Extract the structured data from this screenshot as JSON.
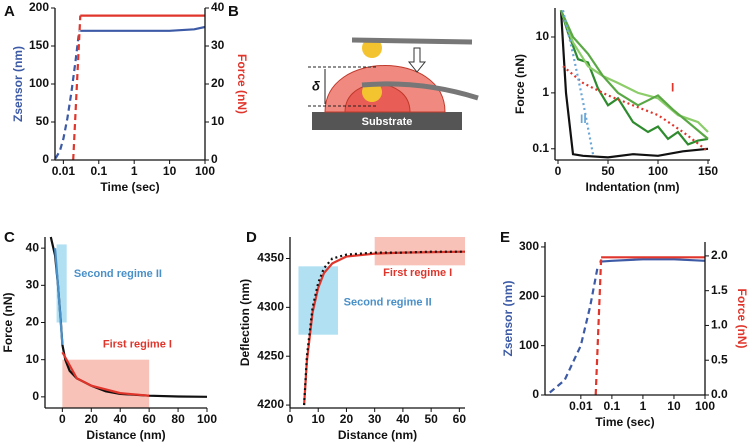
{
  "diagram": {
    "substrate_label": "Substrate",
    "delta_label": "δ"
  },
  "chart_data": [
    {
      "type": "line",
      "panel": "A",
      "xlabel": "Time (sec)",
      "ylabel": "Zsensor (nm)",
      "ylabel_color": "#3c5aa6",
      "y2label": "Force (nN)",
      "y2label_color": "#e0352b",
      "xlog": true,
      "xlim": [
        0.0058,
        100
      ],
      "xticks": [
        0.01,
        0.1,
        1,
        10,
        100
      ],
      "ylim": [
        0,
        200
      ],
      "yticks": [
        0,
        50,
        100,
        150,
        200
      ],
      "y2lim": [
        0,
        40
      ],
      "y2ticks": [
        0,
        10,
        20,
        30,
        40
      ],
      "series": [
        {
          "color": "#3c5aa6",
          "style": "dashed",
          "x": [
            0.006,
            0.008,
            0.01,
            0.013,
            0.017,
            0.022,
            0.028
          ],
          "values": [
            2,
            12,
            28,
            55,
            90,
            130,
            170
          ]
        },
        {
          "color": "#3c5aa6",
          "style": "solid",
          "x": [
            0.03,
            0.1,
            1,
            10,
            50,
            100
          ],
          "values": [
            170,
            170,
            170,
            170,
            172,
            175
          ]
        },
        {
          "color": "#e0352b",
          "style": "dashed",
          "axis": "y2",
          "x": [
            0.019,
            0.03
          ],
          "values": [
            0,
            38
          ]
        },
        {
          "color": "#e0352b",
          "style": "solid",
          "axis": "y2",
          "x": [
            0.03,
            100
          ],
          "values": [
            38,
            38
          ]
        }
      ]
    },
    {
      "type": "line",
      "panel": "B",
      "xlabel": "Indentation (nm)",
      "ylabel": "Force (nN)",
      "ylog": true,
      "xlim": [
        -3,
        152
      ],
      "xticks": [
        0,
        50,
        100,
        150
      ],
      "ylim": [
        0.063,
        33
      ],
      "yticks": [
        0.1,
        1,
        10
      ],
      "series": [
        {
          "color": "#111111",
          "style": "solid",
          "x": [
            3,
            8,
            15,
            25,
            50,
            75,
            100,
            125,
            150
          ],
          "values": [
            30,
            1,
            0.08,
            0.075,
            0.07,
            0.08,
            0.075,
            0.09,
            0.1
          ]
        },
        {
          "color": "#2e8b2e",
          "style": "solid",
          "x": [
            3,
            10,
            20,
            30,
            40,
            50,
            60,
            75,
            90,
            100,
            110,
            120,
            130,
            140,
            150
          ],
          "values": [
            30,
            12,
            4,
            3.5,
            1.2,
            0.6,
            0.8,
            0.3,
            0.2,
            0.25,
            0.15,
            0.2,
            0.12,
            0.14,
            0.15
          ]
        },
        {
          "color": "#8ccd6a",
          "style": "solid",
          "x": [
            3,
            15,
            30,
            45,
            60,
            80,
            100,
            120,
            140,
            150
          ],
          "values": [
            30,
            8,
            3,
            2,
            1.5,
            1,
            0.8,
            0.4,
            0.3,
            0.2
          ]
        },
        {
          "color": "#5aa845",
          "style": "solid",
          "x": [
            3,
            15,
            30,
            45,
            60,
            80,
            100,
            115,
            130,
            150
          ],
          "values": [
            30,
            10,
            5,
            2,
            1,
            0.6,
            0.9,
            0.5,
            0.3,
            0.15
          ]
        },
        {
          "color": "#e0352b",
          "style": "dotted",
          "x": [
            5,
            25,
            50,
            75,
            100,
            125,
            150
          ],
          "values": [
            3,
            1.5,
            0.9,
            0.6,
            0.4,
            0.2,
            0.09
          ]
        },
        {
          "color": "#6aa6d6",
          "style": "dotted",
          "x": [
            5,
            15,
            25,
            35
          ],
          "values": [
            30,
            5,
            0.7,
            0.08
          ]
        }
      ],
      "annotations": [
        {
          "text": "I",
          "x": 113,
          "y": 1.2,
          "color": "#e0352b"
        },
        {
          "text": "II",
          "x": 22,
          "y": 0.33,
          "color": "#6aa6d6"
        }
      ]
    },
    {
      "type": "line",
      "panel": "C",
      "xlabel": "Distance (nm)",
      "ylabel": "Force (nN)",
      "xlim": [
        -12,
        100
      ],
      "xticks": [
        0,
        20,
        40,
        60,
        80,
        100
      ],
      "ylim": [
        -3,
        43
      ],
      "yticks": [
        0,
        10,
        20,
        30,
        40
      ],
      "regions": [
        {
          "x": [
            -4,
            3
          ],
          "y": [
            20,
            41
          ],
          "color": "#9fd8f0",
          "label": "Second regime II",
          "label_x": 8,
          "label_y": 33,
          "label_color": "#4a90c8"
        },
        {
          "x": [
            0,
            60
          ],
          "y": [
            -3,
            10
          ],
          "color": "#f6b3a6",
          "label": "First regime I",
          "label_x": 28,
          "label_y": 14,
          "label_color": "#e0352b"
        }
      ],
      "series": [
        {
          "color": "#111111",
          "style": "solid",
          "x": [
            -8,
            -5,
            -3,
            -1,
            0,
            2,
            5,
            10,
            20,
            30,
            40,
            60,
            80,
            100
          ],
          "values": [
            43,
            38,
            30,
            20,
            14,
            10,
            7,
            5,
            3,
            1.5,
            0.8,
            0.3,
            0.1,
            0
          ]
        },
        {
          "color": "#e0352b",
          "style": "solid",
          "x": [
            0,
            10,
            20,
            40,
            60
          ],
          "values": [
            12,
            5,
            3,
            1,
            0.3
          ]
        },
        {
          "color": "#4a90c8",
          "style": "solid",
          "x": [
            -5,
            -3,
            0
          ],
          "values": [
            40,
            30,
            14
          ]
        }
      ]
    },
    {
      "type": "line",
      "panel": "D",
      "xlabel": "Distance (nm)",
      "ylabel": "Deflection (nm)",
      "xlim": [
        0,
        62
      ],
      "xticks": [
        0,
        10,
        20,
        30,
        40,
        50,
        60
      ],
      "ylim": [
        4197,
        4372
      ],
      "yticks": [
        4200,
        4250,
        4300,
        4350
      ],
      "regions": [
        {
          "x": [
            3,
            17
          ],
          "y": [
            4272,
            4342
          ],
          "color": "#9fd8f0",
          "label": "Second regime II",
          "label_x": 19,
          "label_y": 4305,
          "label_color": "#4a90c8"
        },
        {
          "x": [
            30,
            62
          ],
          "y": [
            4343,
            4372
          ],
          "color": "#f6b3a6",
          "label": "First regime I",
          "label_x": 33,
          "label_y": 4335,
          "label_color": "#e0352b"
        }
      ],
      "series": [
        {
          "color": "#e0352b",
          "style": "solid",
          "x": [
            5,
            6,
            8,
            10,
            12,
            15,
            20,
            30,
            40,
            62
          ],
          "values": [
            4200,
            4245,
            4295,
            4320,
            4335,
            4345,
            4352,
            4355,
            4356,
            4357
          ]
        },
        {
          "color": "#111111",
          "style": "dotted",
          "x": [
            5,
            6,
            8,
            10,
            12,
            15,
            20,
            25,
            30,
            40,
            50,
            62
          ],
          "values": [
            4200,
            4250,
            4300,
            4325,
            4340,
            4350,
            4354,
            4355,
            4356,
            4356,
            4357,
            4357
          ]
        }
      ]
    },
    {
      "type": "line",
      "panel": "E",
      "xlabel": "Time (sec)",
      "ylabel": "Zsensor (nm)",
      "ylabel_color": "#3c5aa6",
      "y2label": "Force (nN)",
      "y2label_color": "#e0352b",
      "xlog": true,
      "xlim": [
        0.0007,
        100
      ],
      "xticks": [
        0.01,
        0.1,
        1,
        10,
        100
      ],
      "ylim": [
        0,
        310
      ],
      "yticks": [
        0,
        100,
        200,
        300
      ],
      "y2lim": [
        0,
        2.2
      ],
      "y2ticks": [
        {
          "value": 0,
          "label": "0.0"
        },
        0.5,
        {
          "value": 1,
          "label": "1.0"
        },
        1.5,
        {
          "value": 2,
          "label": "2.0"
        }
      ],
      "series": [
        {
          "color": "#3c5aa6",
          "style": "dashed",
          "x": [
            0.001,
            0.003,
            0.01,
            0.02,
            0.035
          ],
          "values": [
            5,
            30,
            100,
            180,
            260
          ]
        },
        {
          "color": "#3c5aa6",
          "style": "solid",
          "x": [
            0.04,
            0.1,
            1,
            10,
            100
          ],
          "values": [
            270,
            272,
            275,
            275,
            272
          ]
        },
        {
          "color": "#e0352b",
          "style": "dashed",
          "axis": "y2",
          "x": [
            0.03,
            0.045
          ],
          "values": [
            0,
            1.95
          ]
        },
        {
          "color": "#e0352b",
          "style": "solid",
          "axis": "y2",
          "x": [
            0.045,
            100
          ],
          "values": [
            1.98,
            1.98
          ]
        }
      ]
    }
  ]
}
